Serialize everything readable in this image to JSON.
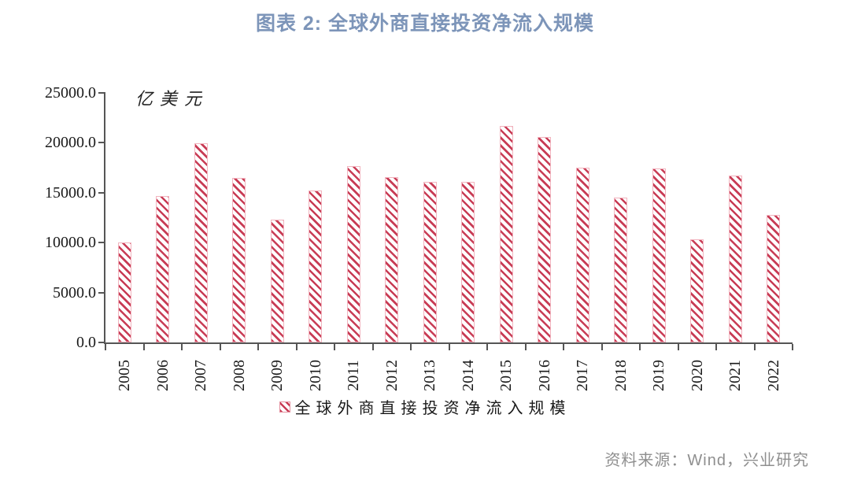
{
  "page": {
    "source": "资料来源：Wind，兴业研究"
  },
  "chart_data": {
    "type": "bar",
    "title": "图表 2: 全球外商直接投资净流入规模",
    "unit_label": "亿美元",
    "categories": [
      "2005",
      "2006",
      "2007",
      "2008",
      "2009",
      "2010",
      "2011",
      "2012",
      "2013",
      "2014",
      "2015",
      "2016",
      "2017",
      "2018",
      "2019",
      "2020",
      "2021",
      "2022"
    ],
    "values": [
      10000,
      14650,
      19950,
      16500,
      12300,
      15200,
      17700,
      16600,
      16100,
      16100,
      21700,
      20550,
      17500,
      14550,
      17400,
      10300,
      16750,
      12800
    ],
    "xlabel": "",
    "ylabel": "",
    "ylim": [
      0,
      25000
    ],
    "ytick_step": 5000,
    "ytick_labels": [
      "0.0",
      "5000.0",
      "10000.0",
      "15000.0",
      "20000.0",
      "25000.0"
    ],
    "grid": false,
    "legend": "全球外商直接投资净流入规模",
    "legend_position": "bottom-center",
    "bar_style": "diagonal-hatch",
    "colors": {
      "title": "#7D95B9",
      "bar_hatch": "#C83C55",
      "bar_border": "#F2B3BE",
      "axis": "#555555",
      "tick_text": "#1A1A1A",
      "source_text": "#8F8F8F"
    }
  }
}
